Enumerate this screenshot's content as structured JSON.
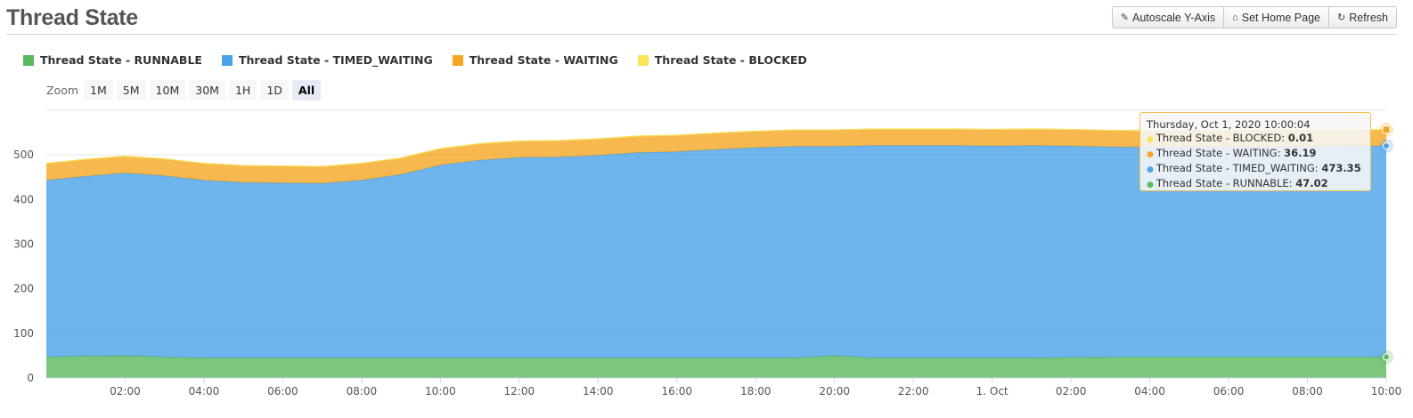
{
  "header": {
    "title": "Thread State",
    "buttons": [
      {
        "label": "Autoscale Y-Axis",
        "icon": "wrench-icon"
      },
      {
        "label": "Set Home Page",
        "icon": "home-icon"
      },
      {
        "label": "Refresh",
        "icon": "refresh-icon"
      }
    ]
  },
  "zoom": {
    "label": "Zoom",
    "options": [
      "1M",
      "5M",
      "10M",
      "30M",
      "1H",
      "1D",
      "All"
    ],
    "selected": "All"
  },
  "tooltip": {
    "date": "Thursday, Oct 1, 2020 10:00:04",
    "rows": [
      {
        "name": "Thread State - BLOCKED",
        "value": "0.01",
        "color": "#f7e55a"
      },
      {
        "name": "Thread State - WAITING",
        "value": "36.19",
        "color": "#f5a623"
      },
      {
        "name": "Thread State - TIMED_WAITING",
        "value": "473.35",
        "color": "#4aa3ea"
      },
      {
        "name": "Thread State - RUNNABLE",
        "value": "47.02",
        "color": "#5cb85c"
      }
    ]
  },
  "chart_data": {
    "type": "area",
    "stacked": true,
    "ylim": [
      0,
      600
    ],
    "yticks": [
      0,
      100,
      200,
      300,
      400,
      500
    ],
    "xlim": [
      0,
      34
    ],
    "xticks": [
      {
        "x": 2,
        "label": "02:00"
      },
      {
        "x": 4,
        "label": "04:00"
      },
      {
        "x": 6,
        "label": "06:00"
      },
      {
        "x": 8,
        "label": "08:00"
      },
      {
        "x": 10,
        "label": "10:00"
      },
      {
        "x": 12,
        "label": "12:00"
      },
      {
        "x": 14,
        "label": "14:00"
      },
      {
        "x": 16,
        "label": "16:00"
      },
      {
        "x": 18,
        "label": "18:00"
      },
      {
        "x": 20,
        "label": "20:00"
      },
      {
        "x": 22,
        "label": "22:00"
      },
      {
        "x": 24,
        "label": "1. Oct"
      },
      {
        "x": 26,
        "label": "02:00"
      },
      {
        "x": 28,
        "label": "04:00"
      },
      {
        "x": 30,
        "label": "06:00"
      },
      {
        "x": 32,
        "label": "08:00"
      },
      {
        "x": 34,
        "label": "10:00"
      }
    ],
    "x": [
      0,
      1,
      2,
      3,
      4,
      5,
      6,
      7,
      8,
      9,
      10,
      11,
      12,
      13,
      14,
      15,
      16,
      17,
      18,
      19,
      20,
      21,
      22,
      23,
      24,
      25,
      26,
      27,
      28,
      29,
      30,
      31,
      32,
      33,
      34
    ],
    "series": [
      {
        "name": "Thread State - RUNNABLE",
        "color": "#5cb85c",
        "values": [
          47,
          49,
          50,
          47,
          45,
          45,
          45,
          45,
          45,
          45,
          45,
          45,
          45,
          45,
          45,
          45,
          45,
          45,
          45,
          45,
          50,
          45,
          45,
          45,
          45,
          45,
          46,
          47,
          47,
          47,
          47,
          47,
          47,
          47,
          47.02
        ]
      },
      {
        "name": "Thread State - TIMED_WAITING",
        "color": "#4aa3ea",
        "values": [
          396,
          403,
          409,
          406,
          398,
          393,
          392,
          391,
          398,
          411,
          432,
          443,
          449,
          450,
          454,
          460,
          462,
          467,
          471,
          474,
          469,
          476,
          476,
          476,
          475,
          476,
          474,
          471,
          470,
          471,
          471,
          472,
          472,
          473,
          473.35
        ]
      },
      {
        "name": "Thread State - WAITING",
        "color": "#f5a623",
        "values": [
          38,
          38,
          38,
          38,
          38,
          38,
          38,
          38,
          38,
          37,
          37,
          37,
          37,
          37,
          37,
          37,
          37,
          37,
          37,
          37,
          37,
          37,
          37,
          37,
          37,
          37,
          37,
          37,
          37,
          37,
          37,
          37,
          37,
          36,
          36.19
        ]
      },
      {
        "name": "Thread State - BLOCKED",
        "color": "#f7e55a",
        "values": [
          0.01,
          0.01,
          0.01,
          0.01,
          0.01,
          0.01,
          0.01,
          0.01,
          0.01,
          0.01,
          0.01,
          0.01,
          0.01,
          0.01,
          0.01,
          0.01,
          0.01,
          0.01,
          0.01,
          0.01,
          0.01,
          0.01,
          0.01,
          0.01,
          0.01,
          0.01,
          0.01,
          0.01,
          0.01,
          0.01,
          0.01,
          0.01,
          0.01,
          0.01,
          0.01
        ]
      }
    ]
  }
}
